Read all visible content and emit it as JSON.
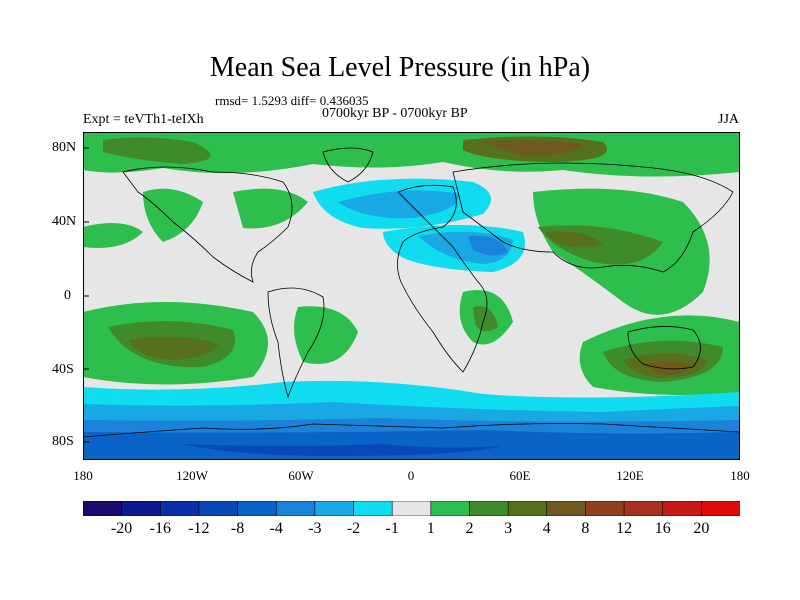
{
  "figure": {
    "title": "Mean Sea Level Pressure (in hPa)",
    "stats": "rmsd= 1.5293 diff= 0.436035",
    "period": "0700kyr BP - 0700kyr BP",
    "experiment": "Expt = teVTh1-teIXh",
    "season": "JJA"
  },
  "map": {
    "lat_labels": [
      "80N",
      "40N",
      "0",
      "40S",
      "80S"
    ],
    "lon_labels": [
      "180",
      "120W",
      "60W",
      "0",
      "60E",
      "120E",
      "180"
    ]
  },
  "colorbar": {
    "labels": [
      "-20",
      "-16",
      "-12",
      "-8",
      "-4",
      "-3",
      "-2",
      "-1",
      "1",
      "2",
      "3",
      "4",
      "8",
      "12",
      "16",
      "20"
    ],
    "colors": [
      "#1a0a6e",
      "#0a1a8c",
      "#0a2fa8",
      "#0a48b8",
      "#0a64c8",
      "#1a82d8",
      "#18a8e4",
      "#10dcf0",
      "#e6e6e6",
      "#2ebe4e",
      "#3f8a2a",
      "#56701e",
      "#6e5a1e",
      "#8e4020",
      "#a83020",
      "#c81818",
      "#e00808"
    ]
  }
}
